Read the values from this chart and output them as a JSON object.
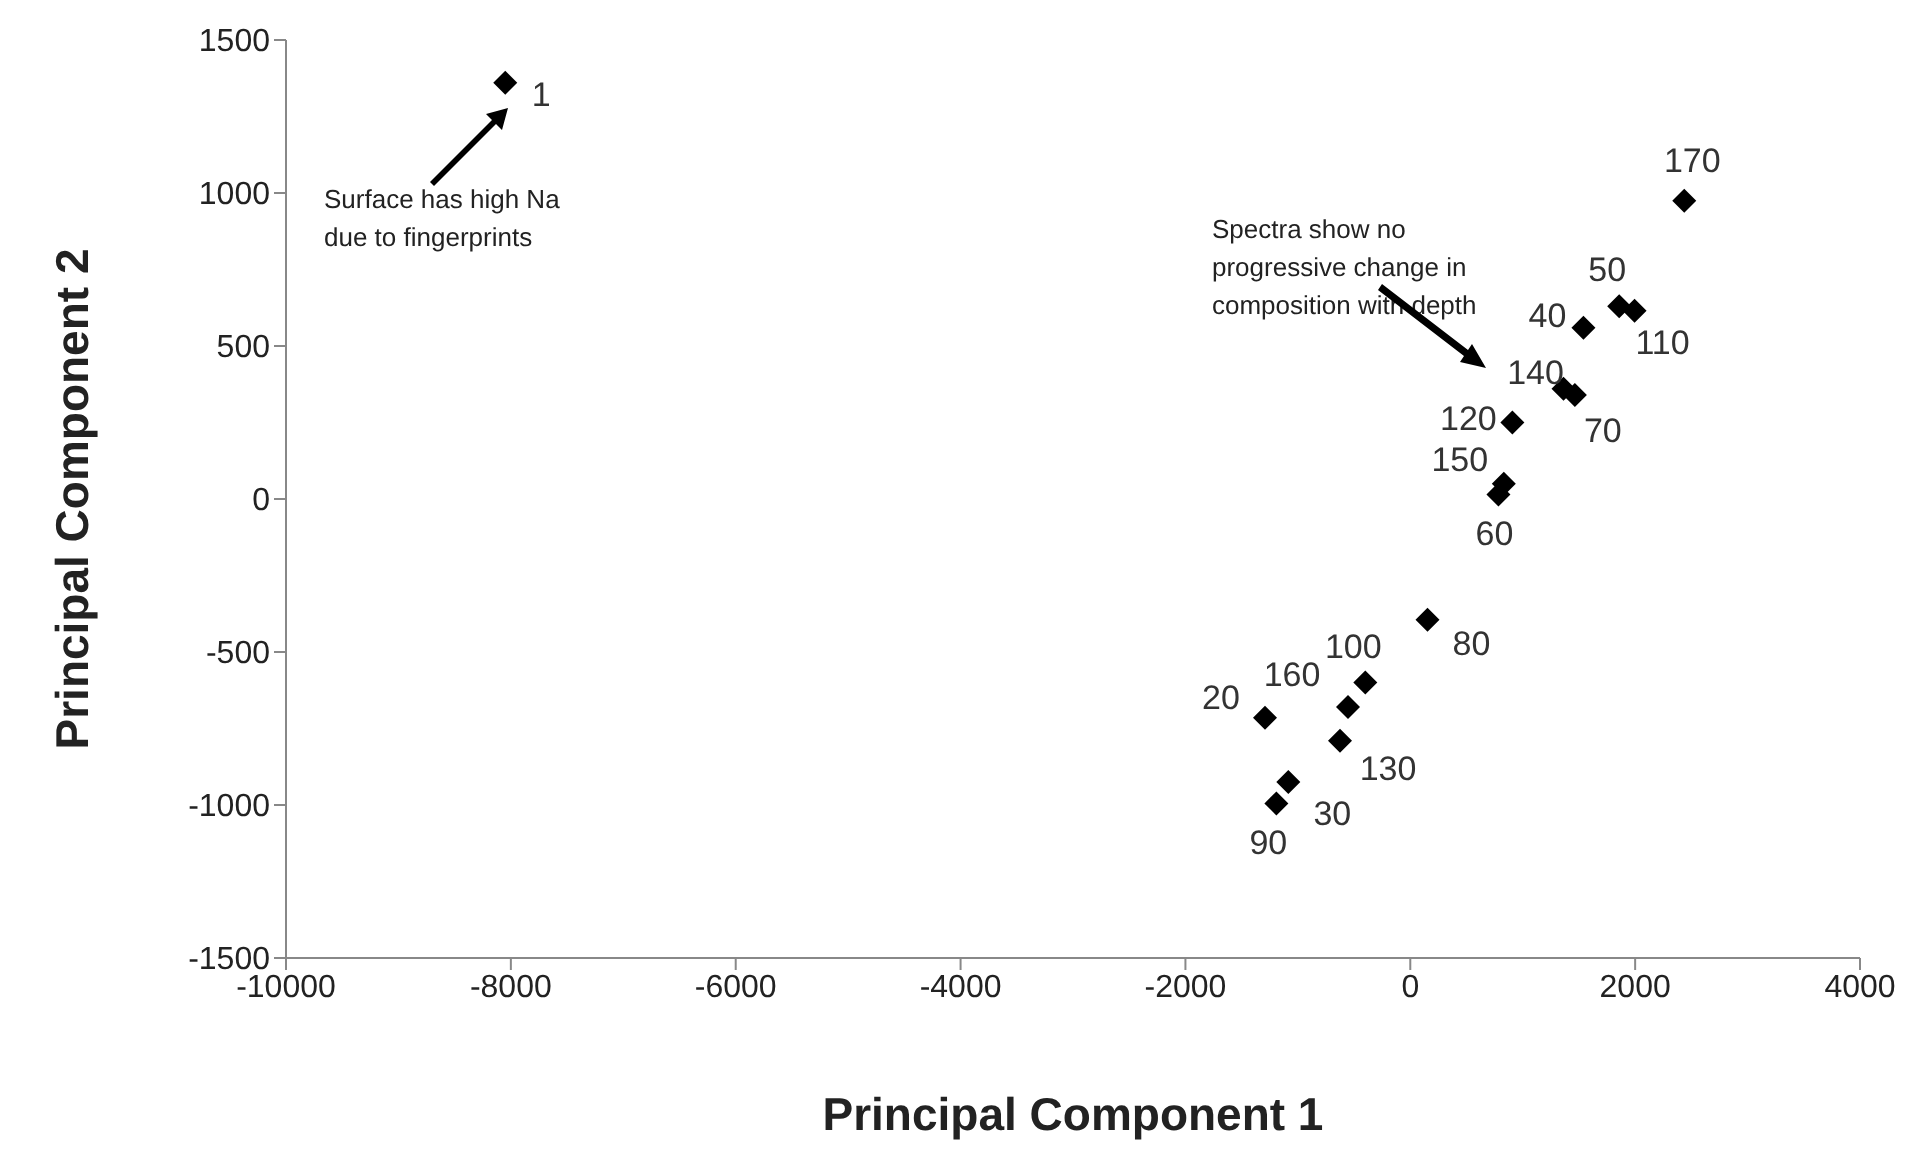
{
  "chart_data": {
    "type": "scatter",
    "xlabel": "Principal Component 1",
    "ylabel": "Principal Component 2",
    "x": [
      -8050,
      1858,
      1995,
      1540,
      1363,
      1464,
      908,
      832,
      784,
      153,
      -400,
      -554,
      -1292,
      -625,
      -1085,
      -1191,
      2437
    ],
    "values": [
      1360,
      630,
      615,
      560,
      360,
      340,
      250,
      50,
      15,
      -395,
      -600,
      -680,
      -715,
      -790,
      -925,
      -995,
      975
    ],
    "color": "#000000",
    "marker": "diamond",
    "xlim": [
      -10000,
      4000
    ],
    "xticks": [
      -10000,
      -8000,
      -6000,
      -4000,
      -2000,
      0,
      2000,
      4000
    ],
    "ylim": [
      -1500,
      1500
    ],
    "yticks": [
      -1500,
      -1000,
      -500,
      0,
      500,
      1000,
      1500
    ],
    "annotations": [
      {
        "text": "1",
        "x": -8050,
        "y": 1360
      },
      {
        "text": "50",
        "x": 1858,
        "y": 630
      },
      {
        "text": "110",
        "x": 1995,
        "y": 615
      },
      {
        "text": "40",
        "x": 1540,
        "y": 560
      },
      {
        "text": "140",
        "x": 1363,
        "y": 360
      },
      {
        "text": "70",
        "x": 1464,
        "y": 340
      },
      {
        "text": "120",
        "x": 908,
        "y": 250
      },
      {
        "text": "150",
        "x": 832,
        "y": 50
      },
      {
        "text": "60",
        "x": 784,
        "y": 15
      },
      {
        "text": "80",
        "x": 153,
        "y": -395
      },
      {
        "text": "100",
        "x": -400,
        "y": -600
      },
      {
        "text": "160",
        "x": -554,
        "y": -680
      },
      {
        "text": "20",
        "x": -1292,
        "y": -715
      },
      {
        "text": "130",
        "x": -625,
        "y": -790
      },
      {
        "text": "30",
        "x": -1085,
        "y": -925
      },
      {
        "text": "90",
        "x": -1191,
        "y": -995
      },
      {
        "text": "170",
        "x": 2437,
        "y": 975
      },
      "Surface has high Na due to fingerprints",
      "Spectra show no progressive change in composition with depth"
    ]
  }
}
